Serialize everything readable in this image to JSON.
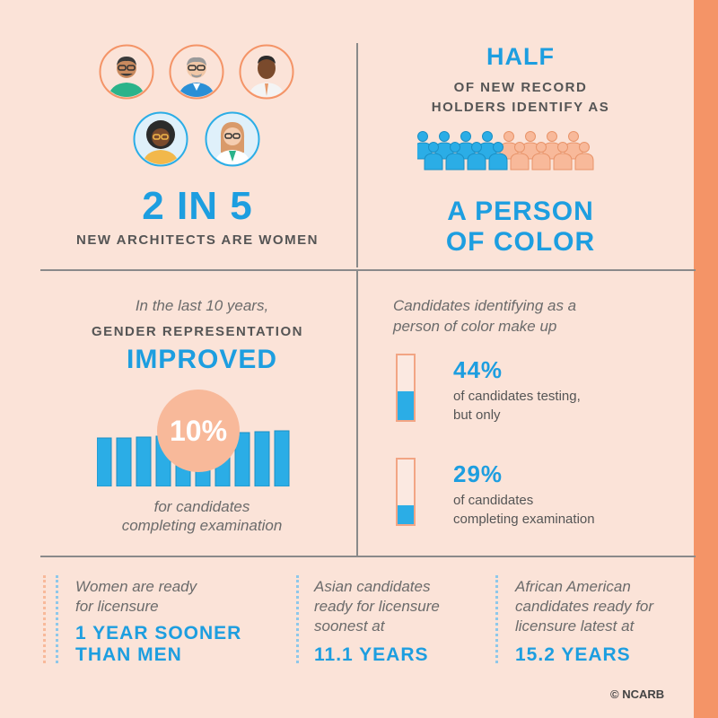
{
  "women": {
    "headline": "2 IN 5",
    "caption": "NEW ARCHITECTS ARE WOMEN"
  },
  "poc": {
    "headline": "HALF",
    "caption_line1": "OF NEW RECORD",
    "caption_line2": "HOLDERS IDENTIFY AS",
    "subject_line1": "A PERSON",
    "subject_line2": "OF COLOR",
    "share_highlighted": 0.5
  },
  "gender": {
    "intro": "In the last 10 years,",
    "label": "GENDER REPRESENTATION",
    "headline": "IMPROVED",
    "percent": "10%",
    "footer_line1": "for candidates",
    "footer_line2": "completing examination"
  },
  "candidates": {
    "intro_line1": "Candidates identifying as a",
    "intro_line2": "person of color make up",
    "items": [
      {
        "percent": "44%",
        "line1": "of candidates testing,",
        "line2": "but only",
        "fill": 0.44
      },
      {
        "percent": "29%",
        "line1": "of candidates",
        "line2": "completing examination",
        "fill": 0.29
      }
    ]
  },
  "licensure": [
    {
      "text_line1": "Women are ready",
      "text_line2": "for licensure",
      "text_line3": "",
      "stat_line1": "1 YEAR SOONER",
      "stat_line2": "THAN MEN"
    },
    {
      "text_line1": "Asian candidates",
      "text_line2": "ready for licensure",
      "text_line3": "soonest at",
      "stat_line1": "11.1 YEARS",
      "stat_line2": ""
    },
    {
      "text_line1": "African American",
      "text_line2": "candidates ready for",
      "text_line3": "licensure latest at",
      "stat_line1": "15.2 YEARS",
      "stat_line2": ""
    }
  ],
  "credit": "© NCARB",
  "colors": {
    "blue": "#2bade6",
    "orange": "#f49467",
    "peach": "#f8b99a",
    "background": "#fbe3d8",
    "divider": "#8a8a8a"
  },
  "icons": [
    "architect-avatar",
    "person-icon",
    "bar-icon",
    "progress-tube",
    "dotted-scale"
  ]
}
